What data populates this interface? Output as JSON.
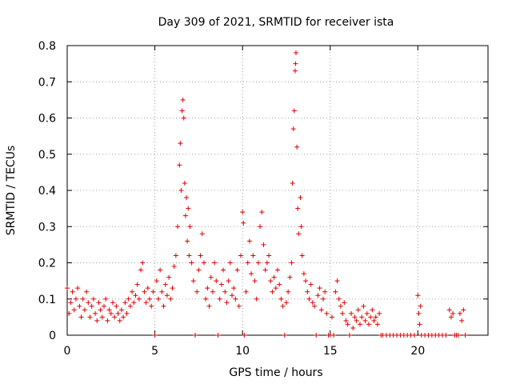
{
  "chart_data": {
    "type": "scatter",
    "title": "Day 309 of 2021, SRMTID for receiver ista",
    "xlabel": "GPS time / hours",
    "ylabel": "SRMTID / TECUs",
    "xlim": [
      0,
      24
    ],
    "ylim": [
      0,
      0.8
    ],
    "xticks": [
      0,
      5,
      10,
      15,
      20
    ],
    "yticks": [
      0,
      0.1,
      0.2,
      0.3,
      0.4,
      0.5,
      0.6,
      0.7,
      0.8
    ],
    "xtick_labels": [
      "0",
      "5",
      "10",
      "15",
      "20"
    ],
    "ytick_labels": [
      "0",
      "0.1",
      "0.2",
      "0.3",
      "0.4",
      "0.5",
      "0.6",
      "0.7",
      "0.8"
    ],
    "grid": true,
    "marker": "+",
    "color": "#e00000",
    "series": [
      {
        "name": "SRMTID (approximate, read from plot)",
        "points": [
          [
            0.0,
            0.13
          ],
          [
            0.1,
            0.06
          ],
          [
            0.2,
            0.09
          ],
          [
            0.3,
            0.12
          ],
          [
            0.4,
            0.07
          ],
          [
            0.5,
            0.1
          ],
          [
            0.6,
            0.13
          ],
          [
            0.7,
            0.08
          ],
          [
            0.8,
            0.05
          ],
          [
            0.9,
            0.1
          ],
          [
            1.0,
            0.07
          ],
          [
            1.1,
            0.12
          ],
          [
            1.2,
            0.09
          ],
          [
            1.3,
            0.05
          ],
          [
            1.4,
            0.08
          ],
          [
            1.5,
            0.1
          ],
          [
            1.6,
            0.06
          ],
          [
            1.7,
            0.04
          ],
          [
            1.8,
            0.09
          ],
          [
            1.9,
            0.07
          ],
          [
            2.0,
            0.05
          ],
          [
            2.1,
            0.08
          ],
          [
            2.2,
            0.1
          ],
          [
            2.3,
            0.04
          ],
          [
            2.4,
            0.07
          ],
          [
            2.5,
            0.06
          ],
          [
            2.6,
            0.09
          ],
          [
            2.7,
            0.05
          ],
          [
            2.8,
            0.08
          ],
          [
            2.9,
            0.06
          ],
          [
            3.0,
            0.04
          ],
          [
            3.1,
            0.07
          ],
          [
            3.2,
            0.05
          ],
          [
            3.3,
            0.09
          ],
          [
            3.4,
            0.06
          ],
          [
            3.5,
            0.1
          ],
          [
            3.6,
            0.08
          ],
          [
            3.7,
            0.12
          ],
          [
            3.8,
            0.09
          ],
          [
            3.9,
            0.11
          ],
          [
            4.0,
            0.14
          ],
          [
            4.1,
            0.1
          ],
          [
            4.2,
            0.18
          ],
          [
            4.3,
            0.2
          ],
          [
            4.4,
            0.12
          ],
          [
            4.5,
            0.09
          ],
          [
            4.6,
            0.13
          ],
          [
            4.7,
            0.1
          ],
          [
            4.8,
            0.08
          ],
          [
            4.9,
            0.12
          ],
          [
            5.0,
            0.0
          ],
          [
            5.1,
            0.15
          ],
          [
            5.2,
            0.1
          ],
          [
            5.3,
            0.18
          ],
          [
            5.4,
            0.12
          ],
          [
            5.5,
            0.08
          ],
          [
            5.6,
            0.14
          ],
          [
            5.7,
            0.11
          ],
          [
            5.8,
            0.16
          ],
          [
            5.9,
            0.1
          ],
          [
            6.0,
            0.13
          ],
          [
            6.1,
            0.19
          ],
          [
            6.2,
            0.22
          ],
          [
            6.3,
            0.3
          ],
          [
            6.4,
            0.47
          ],
          [
            6.45,
            0.53
          ],
          [
            6.5,
            0.4
          ],
          [
            6.55,
            0.62
          ],
          [
            6.6,
            0.65
          ],
          [
            6.65,
            0.6
          ],
          [
            6.7,
            0.42
          ],
          [
            6.75,
            0.33
          ],
          [
            6.8,
            0.38
          ],
          [
            6.85,
            0.26
          ],
          [
            6.9,
            0.35
          ],
          [
            6.95,
            0.22
          ],
          [
            7.0,
            0.3
          ],
          [
            7.1,
            0.2
          ],
          [
            7.2,
            0.15
          ],
          [
            7.3,
            0.0
          ],
          [
            7.4,
            0.12
          ],
          [
            7.5,
            0.18
          ],
          [
            7.6,
            0.22
          ],
          [
            7.7,
            0.28
          ],
          [
            7.8,
            0.2
          ],
          [
            7.9,
            0.1
          ],
          [
            8.0,
            0.13
          ],
          [
            8.1,
            0.08
          ],
          [
            8.2,
            0.16
          ],
          [
            8.3,
            0.12
          ],
          [
            8.4,
            0.2
          ],
          [
            8.5,
            0.15
          ],
          [
            8.6,
            0.0
          ],
          [
            8.7,
            0.1
          ],
          [
            8.8,
            0.14
          ],
          [
            8.9,
            0.18
          ],
          [
            9.0,
            0.12
          ],
          [
            9.1,
            0.09
          ],
          [
            9.2,
            0.15
          ],
          [
            9.3,
            0.2
          ],
          [
            9.4,
            0.11
          ],
          [
            9.5,
            0.13
          ],
          [
            9.6,
            0.1
          ],
          [
            9.7,
            0.18
          ],
          [
            9.8,
            0.08
          ],
          [
            9.9,
            0.22
          ],
          [
            10.0,
            0.34
          ],
          [
            10.05,
            0.31
          ],
          [
            10.1,
            0.0
          ],
          [
            10.2,
            0.12
          ],
          [
            10.3,
            0.2
          ],
          [
            10.4,
            0.26
          ],
          [
            10.5,
            0.17
          ],
          [
            10.6,
            0.22
          ],
          [
            10.7,
            0.15
          ],
          [
            10.8,
            0.1
          ],
          [
            10.9,
            0.2
          ],
          [
            11.0,
            0.3
          ],
          [
            11.1,
            0.34
          ],
          [
            11.2,
            0.25
          ],
          [
            11.3,
            0.18
          ],
          [
            11.4,
            0.2
          ],
          [
            11.5,
            0.22
          ],
          [
            11.6,
            0.15
          ],
          [
            11.7,
            0.12
          ],
          [
            11.8,
            0.16
          ],
          [
            11.9,
            0.13
          ],
          [
            12.0,
            0.18
          ],
          [
            12.1,
            0.14
          ],
          [
            12.2,
            0.1
          ],
          [
            12.3,
            0.08
          ],
          [
            12.4,
            0.0
          ],
          [
            12.5,
            0.09
          ],
          [
            12.6,
            0.12
          ],
          [
            12.7,
            0.16
          ],
          [
            12.8,
            0.2
          ],
          [
            12.85,
            0.42
          ],
          [
            12.9,
            0.57
          ],
          [
            12.95,
            0.62
          ],
          [
            13.0,
            0.73
          ],
          [
            13.02,
            0.75
          ],
          [
            13.05,
            0.78
          ],
          [
            13.1,
            0.52
          ],
          [
            13.15,
            0.35
          ],
          [
            13.2,
            0.28
          ],
          [
            13.3,
            0.38
          ],
          [
            13.35,
            0.3
          ],
          [
            13.4,
            0.22
          ],
          [
            13.5,
            0.17
          ],
          [
            13.6,
            0.15
          ],
          [
            13.7,
            0.12
          ],
          [
            13.8,
            0.1
          ],
          [
            13.9,
            0.14
          ],
          [
            14.0,
            0.09
          ],
          [
            14.1,
            0.08
          ],
          [
            14.2,
            0.0
          ],
          [
            14.3,
            0.11
          ],
          [
            14.4,
            0.13
          ],
          [
            14.5,
            0.07
          ],
          [
            14.6,
            0.1
          ],
          [
            14.7,
            0.12
          ],
          [
            14.8,
            0.06
          ],
          [
            14.9,
            0.0
          ],
          [
            15.0,
            0.0
          ],
          [
            15.1,
            0.05
          ],
          [
            15.2,
            0.0
          ],
          [
            15.3,
            0.12
          ],
          [
            15.4,
            0.15
          ],
          [
            15.5,
            0.1
          ],
          [
            15.6,
            0.08
          ],
          [
            15.7,
            0.06
          ],
          [
            15.8,
            0.09
          ],
          [
            15.9,
            0.04
          ],
          [
            16.0,
            0.03
          ],
          [
            16.1,
            0.0
          ],
          [
            16.2,
            0.06
          ],
          [
            16.3,
            0.02
          ],
          [
            16.4,
            0.05
          ],
          [
            16.5,
            0.04
          ],
          [
            16.6,
            0.07
          ],
          [
            16.7,
            0.03
          ],
          [
            16.8,
            0.05
          ],
          [
            16.9,
            0.08
          ],
          [
            17.0,
            0.04
          ],
          [
            17.1,
            0.06
          ],
          [
            17.2,
            0.03
          ],
          [
            17.3,
            0.05
          ],
          [
            17.4,
            0.07
          ],
          [
            17.5,
            0.04
          ],
          [
            17.6,
            0.05
          ],
          [
            17.7,
            0.03
          ],
          [
            17.8,
            0.06
          ],
          [
            17.9,
            0.0
          ],
          [
            18.0,
            0.0
          ],
          [
            18.2,
            0.0
          ],
          [
            18.4,
            0.0
          ],
          [
            18.6,
            0.0
          ],
          [
            18.8,
            0.0
          ],
          [
            19.0,
            0.0
          ],
          [
            19.2,
            0.0
          ],
          [
            19.4,
            0.0
          ],
          [
            19.6,
            0.0
          ],
          [
            19.8,
            0.0
          ],
          [
            20.0,
            0.11
          ],
          [
            20.05,
            0.06
          ],
          [
            20.1,
            0.03
          ],
          [
            20.15,
            0.08
          ],
          [
            20.2,
            0.0
          ],
          [
            20.4,
            0.0
          ],
          [
            20.6,
            0.0
          ],
          [
            20.8,
            0.0
          ],
          [
            21.0,
            0.0
          ],
          [
            21.2,
            0.0
          ],
          [
            21.4,
            0.0
          ],
          [
            21.6,
            0.0
          ],
          [
            21.8,
            0.07
          ],
          [
            21.9,
            0.05
          ],
          [
            22.0,
            0.06
          ],
          [
            22.1,
            0.0
          ],
          [
            22.2,
            0.0
          ],
          [
            22.3,
            0.0
          ],
          [
            22.4,
            0.06
          ],
          [
            22.5,
            0.04
          ],
          [
            22.6,
            0.07
          ],
          [
            22.7,
            0.0
          ]
        ]
      }
    ]
  }
}
